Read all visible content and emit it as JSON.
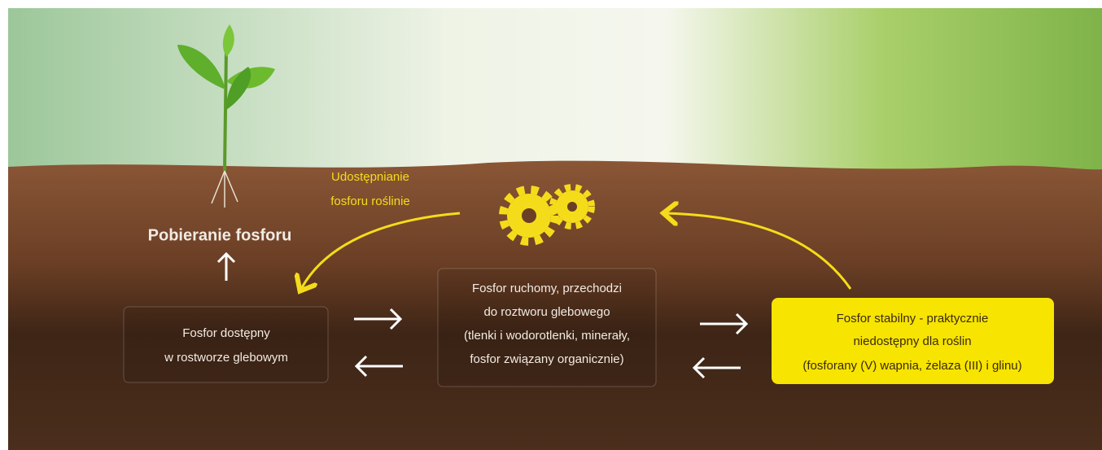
{
  "uptake_label": "Pobieranie fosforu",
  "release_label": [
    "Udostępnianie",
    "fosforu roślinie"
  ],
  "boxes": [
    {
      "lines": [
        "Fosfor dostępny",
        "w rostworze glebowym"
      ]
    },
    {
      "lines": [
        "Fosfor ruchomy, przechodzi",
        "do roztworu glebowego",
        "(tlenki i wodorotlenki, minerały,",
        "fosfor związany organicznie)"
      ]
    },
    {
      "lines": [
        "Fosfor stabilny - praktycznie",
        "niedostępny dla roślin",
        "(fosforany (V) wapnia, żelaza (III) i glinu)"
      ]
    }
  ]
}
